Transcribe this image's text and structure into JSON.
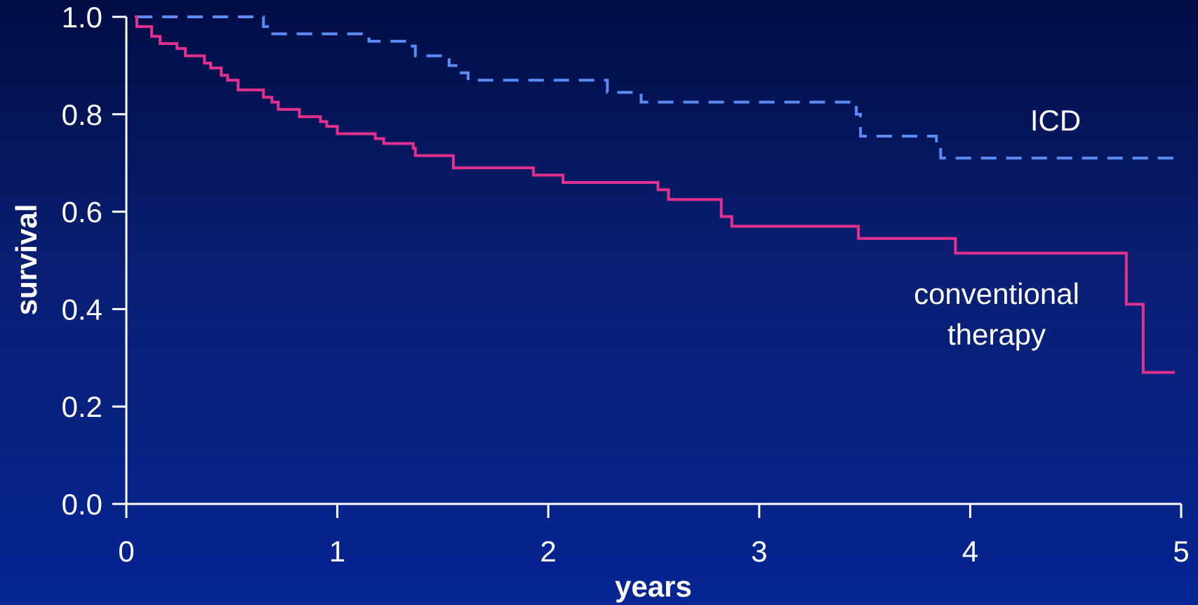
{
  "colors": {
    "icd": "#5b8cf5",
    "conventional": "#e2308f",
    "axis": "#ffffff"
  },
  "chart_data": {
    "type": "line",
    "title": "",
    "xlabel": "years",
    "ylabel": "survival",
    "xlim": [
      0,
      5
    ],
    "ylim": [
      0,
      1
    ],
    "xticks": [
      "0",
      "1",
      "2",
      "3",
      "4",
      "5"
    ],
    "yticks": [
      "0.0",
      "0.2",
      "0.4",
      "0.6",
      "0.8",
      "1.0"
    ],
    "grid": false,
    "legend": "none",
    "annotations": {
      "icd_label": "ICD",
      "conventional_label_line1": "conventional",
      "conventional_label_line2": "therapy"
    },
    "series": [
      {
        "key": "icd",
        "style": "dashed",
        "step": true,
        "points": [
          [
            0.05,
            1.0
          ],
          [
            0.65,
            0.98
          ],
          [
            0.68,
            0.965
          ],
          [
            1.15,
            0.95
          ],
          [
            1.32,
            0.94
          ],
          [
            1.37,
            0.92
          ],
          [
            1.53,
            0.9
          ],
          [
            1.57,
            0.885
          ],
          [
            1.62,
            0.87
          ],
          [
            2.28,
            0.845
          ],
          [
            2.44,
            0.825
          ],
          [
            3.46,
            0.8
          ],
          [
            3.48,
            0.755
          ],
          [
            3.84,
            0.74
          ],
          [
            3.86,
            0.71
          ],
          [
            5.0,
            0.71
          ]
        ]
      },
      {
        "key": "conventional",
        "style": "solid",
        "step": true,
        "points": [
          [
            0.04,
            1.0
          ],
          [
            0.05,
            0.98
          ],
          [
            0.12,
            0.96
          ],
          [
            0.16,
            0.945
          ],
          [
            0.24,
            0.935
          ],
          [
            0.28,
            0.92
          ],
          [
            0.37,
            0.905
          ],
          [
            0.4,
            0.895
          ],
          [
            0.45,
            0.88
          ],
          [
            0.48,
            0.87
          ],
          [
            0.53,
            0.85
          ],
          [
            0.65,
            0.835
          ],
          [
            0.69,
            0.825
          ],
          [
            0.72,
            0.81
          ],
          [
            0.82,
            0.795
          ],
          [
            0.92,
            0.785
          ],
          [
            0.95,
            0.775
          ],
          [
            1.0,
            0.76
          ],
          [
            1.18,
            0.75
          ],
          [
            1.22,
            0.74
          ],
          [
            1.36,
            0.73
          ],
          [
            1.37,
            0.715
          ],
          [
            1.55,
            0.69
          ],
          [
            1.93,
            0.675
          ],
          [
            2.07,
            0.66
          ],
          [
            2.52,
            0.645
          ],
          [
            2.57,
            0.625
          ],
          [
            2.82,
            0.59
          ],
          [
            2.87,
            0.57
          ],
          [
            3.47,
            0.545
          ],
          [
            3.93,
            0.515
          ],
          [
            4.74,
            0.41
          ],
          [
            4.82,
            0.27
          ],
          [
            4.97,
            0.27
          ]
        ]
      }
    ]
  }
}
